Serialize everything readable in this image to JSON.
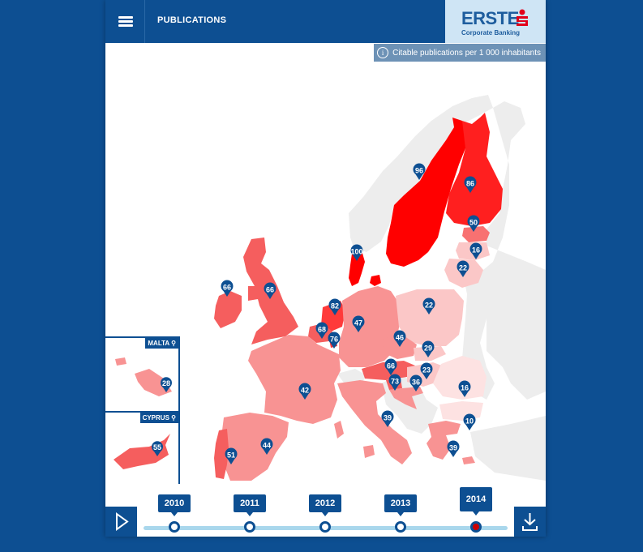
{
  "header": {
    "title": "PUBLICATIONS"
  },
  "logo": {
    "word": "ERSTE",
    "sub": "Corporate Banking"
  },
  "info": {
    "label": "Citable publications per 1 000 inhabitants"
  },
  "insets": {
    "malta": {
      "label": "MALTA",
      "value": "28"
    },
    "cyprus": {
      "label": "CYPRUS",
      "value": "55"
    }
  },
  "colors": {
    "navy": "#0d4f92",
    "v100": "#ff0000",
    "v80": "#ff3a3a",
    "v60": "#f55e5e",
    "v40": "#f89393",
    "v20": "#fbc7c7",
    "v10": "#fde2e2",
    "nodata": "#ededed"
  },
  "countries": [
    {
      "id": "norway",
      "value": null
    },
    {
      "id": "sweden",
      "value": "96"
    },
    {
      "id": "finland",
      "value": "86"
    },
    {
      "id": "estonia",
      "value": "50"
    },
    {
      "id": "latvia",
      "value": "16"
    },
    {
      "id": "lithuania",
      "value": "22"
    },
    {
      "id": "denmark",
      "value": "100"
    },
    {
      "id": "ireland",
      "value": "66"
    },
    {
      "id": "uk",
      "value": "66"
    },
    {
      "id": "netherlands",
      "value": "82"
    },
    {
      "id": "belgium",
      "value": "68"
    },
    {
      "id": "luxembourg",
      "value": "76"
    },
    {
      "id": "germany",
      "value": "47"
    },
    {
      "id": "poland",
      "value": "22"
    },
    {
      "id": "czechia",
      "value": "46"
    },
    {
      "id": "slovakia",
      "value": "29"
    },
    {
      "id": "austria",
      "value": "66"
    },
    {
      "id": "slovenia",
      "value": "73"
    },
    {
      "id": "croatia",
      "value": "36"
    },
    {
      "id": "hungary",
      "value": "23"
    },
    {
      "id": "romania",
      "value": "16"
    },
    {
      "id": "bulgaria",
      "value": "10"
    },
    {
      "id": "france",
      "value": "42"
    },
    {
      "id": "italy",
      "value": "39"
    },
    {
      "id": "spain",
      "value": "44"
    },
    {
      "id": "portugal",
      "value": "51"
    },
    {
      "id": "greece",
      "value": "39"
    }
  ],
  "timeline": {
    "years": [
      "2010",
      "2011",
      "2012",
      "2013",
      "2014"
    ],
    "active": "2014"
  }
}
